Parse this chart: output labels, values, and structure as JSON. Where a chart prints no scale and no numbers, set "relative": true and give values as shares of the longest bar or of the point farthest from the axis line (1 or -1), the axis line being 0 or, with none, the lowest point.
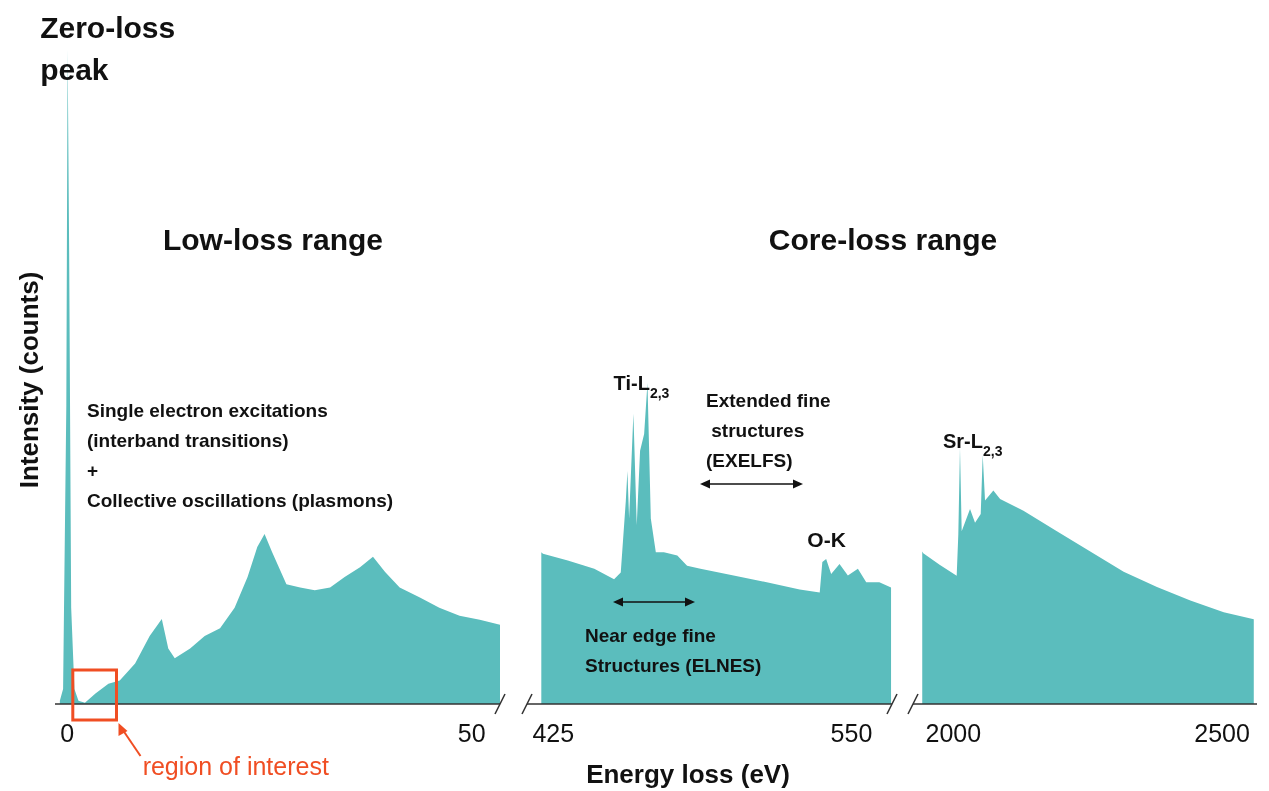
{
  "chart_data": [
    {
      "type": "area",
      "title": "Low-loss range",
      "ylabel": "Intensity (counts)",
      "relative": true,
      "color": "#5bbdbd",
      "xlim": [
        -1.5,
        53.5
      ],
      "xticks": [
        0,
        50
      ],
      "x": [
        -0.9,
        -0.5,
        -0.1,
        0.06,
        0.25,
        0.5,
        0.9,
        1.4,
        2.2,
        3.5,
        5.1,
        6.5,
        8.4,
        10.2,
        11.7,
        12.5,
        13.3,
        15.2,
        17.0,
        18.9,
        20.7,
        22.3,
        23.5,
        24.4,
        25.3,
        27.1,
        28.8,
        30.6,
        32.5,
        34.3,
        36.2,
        37.8,
        39.3,
        41.1,
        43.6,
        46.0,
        48.5,
        51.0,
        53.5
      ],
      "values": [
        0.005,
        0.023,
        0.457,
        1,
        0.69,
        0.147,
        0.023,
        0.005,
        0.002,
        0.016,
        0.031,
        0.036,
        0.062,
        0.104,
        0.13,
        0.085,
        0.07,
        0.085,
        0.104,
        0.116,
        0.147,
        0.194,
        0.24,
        0.26,
        0.233,
        0.183,
        0.178,
        0.174,
        0.178,
        0.194,
        0.209,
        0.225,
        0.202,
        0.178,
        0.163,
        0.147,
        0.135,
        0.129,
        0.121
      ],
      "annotations": [
        {
          "text": "Zero-loss\npeak",
          "x": 0,
          "y": 1
        },
        "Single electron excitations\n(interband transitions)\n+\nCollective oscillations (plasmons)",
        {
          "text": "region of interest",
          "x": 3.4,
          "y": 0
        }
      ]
    },
    {
      "type": "area",
      "title": "Core-loss range",
      "xlabel": "Energy loss (eV)",
      "relative": true,
      "color": "#5bbdbd",
      "xlim": [
        414,
        567
      ],
      "xticks": [
        425,
        550
      ],
      "x": [
        420.0,
        420.7,
        431.1,
        442.2,
        450.5,
        453.3,
        455.4,
        456.1,
        456.8,
        458.6,
        460.0,
        461.4,
        463.1,
        464.5,
        465.9,
        468.0,
        471.4,
        477.0,
        481.1,
        486.7,
        500.6,
        514.5,
        528.3,
        536.7,
        537.8,
        539.4,
        541.5,
        545.0,
        548.5,
        552.7,
        556.2,
        561.7,
        566.6
      ],
      "values": [
        0.473,
        0.468,
        0.447,
        0.421,
        0.389,
        0.41,
        0.631,
        0.726,
        0.578,
        0.904,
        0.557,
        0.789,
        0.841,
        1,
        0.578,
        0.473,
        0.473,
        0.463,
        0.431,
        0.421,
        0.4,
        0.379,
        0.357,
        0.347,
        0.442,
        0.452,
        0.405,
        0.436,
        0.4,
        0.421,
        0.379,
        0.379,
        0.363
      ],
      "annotations": [
        {
          "text": "Ti-L$_{2,3}$",
          "x": 464.5,
          "y": 1
        },
        "Extended fine\n structures\n(EXELFS)",
        {
          "text": "O-K",
          "x": 537.8,
          "y": 0.442
        },
        "Near edge fine\nStructures (ELNES)"
      ]
    },
    {
      "type": "area",
      "relative": true,
      "color": "#5bbdbd",
      "xlim": [
        1925,
        2565
      ],
      "xticks": [
        2000,
        2500
      ],
      "x": [
        1942.2,
        1944.1,
        1975.2,
        2006.3,
        2009.3,
        2012.4,
        2015.6,
        2031.1,
        2040.4,
        2051.0,
        2054.7,
        2059.0,
        2074.5,
        2087.0,
        2130.5,
        2192.7,
        2254.8,
        2316.9,
        2378.9,
        2441.0,
        2503.1,
        2559.0
      ],
      "values": [
        0.596,
        0.589,
        0.543,
        0.501,
        0.662,
        1,
        0.675,
        0.762,
        0.708,
        0.742,
        0.973,
        0.795,
        0.834,
        0.801,
        0.755,
        0.675,
        0.596,
        0.517,
        0.457,
        0.404,
        0.358,
        0.331
      ],
      "annotations": [
        {
          "text": "Sr-L$_{2,3}$",
          "x": 2012.4,
          "y": 1
        }
      ]
    }
  ]
}
